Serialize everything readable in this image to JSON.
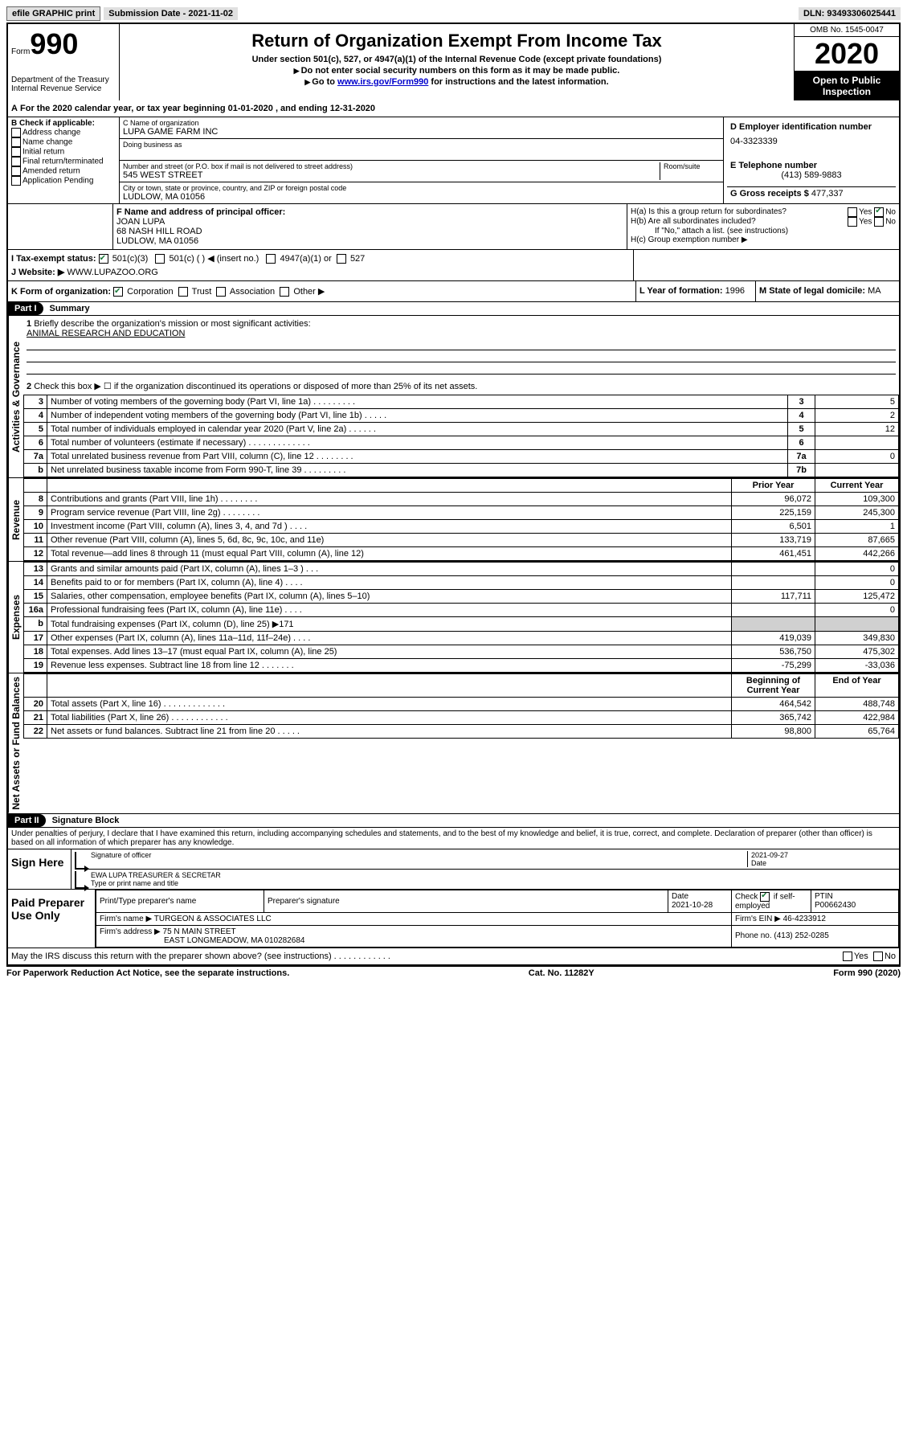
{
  "toolbar": {
    "efile": "efile GRAPHIC print",
    "submission_label": "Submission Date",
    "submission_date": "2021-11-02",
    "dln_label": "DLN:",
    "dln": "93493306025441"
  },
  "header": {
    "form_label": "Form",
    "form_number": "990",
    "dept1": "Department of the Treasury",
    "dept2": "Internal Revenue Service",
    "title": "Return of Organization Exempt From Income Tax",
    "subtitle": "Under section 501(c), 527, or 4947(a)(1) of the Internal Revenue Code (except private foundations)",
    "note1": "Do not enter social security numbers on this form as it may be made public.",
    "note2_a": "Go to ",
    "note2_link": "www.irs.gov/Form990",
    "note2_b": " for instructions and the latest information.",
    "omb": "OMB No. 1545-0047",
    "year": "2020",
    "inspection1": "Open to Public",
    "inspection2": "Inspection"
  },
  "period": "For the 2020 calendar year, or tax year beginning 01-01-2020   , and ending 12-31-2020",
  "section_b": {
    "label": "B Check if applicable:",
    "items": [
      "Address change",
      "Name change",
      "Initial return",
      "Final return/terminated",
      "Amended return",
      "Application Pending"
    ]
  },
  "section_c": {
    "name_label": "C Name of organization",
    "name": "LUPA GAME FARM INC",
    "dba_label": "Doing business as",
    "street_label": "Number and street (or P.O. box if mail is not delivered to street address)",
    "room_label": "Room/suite",
    "street": "545 WEST STREET",
    "city_label": "City or town, state or province, country, and ZIP or foreign postal code",
    "city": "LUDLOW, MA  01056"
  },
  "section_d": {
    "label": "D Employer identification number",
    "value": "04-3323339"
  },
  "section_e": {
    "label": "E Telephone number",
    "value": "(413) 589-9883"
  },
  "section_g": {
    "label": "G Gross receipts $",
    "value": "477,337"
  },
  "section_f": {
    "label": "F  Name and address of principal officer:",
    "name": "JOAN LUPA",
    "addr1": "68 NASH HILL ROAD",
    "addr2": "LUDLOW, MA  01056"
  },
  "section_h": {
    "a_label": "H(a)  Is this a group return for subordinates?",
    "b_label": "H(b)  Are all subordinates included?",
    "b_note": "If \"No,\" attach a list. (see instructions)",
    "c_label": "H(c)  Group exemption number ▶"
  },
  "section_i": {
    "label": "I  Tax-exempt status:",
    "opt1": "501(c)(3)",
    "opt2": "501(c) (  ) ◀ (insert no.)",
    "opt3": "4947(a)(1) or",
    "opt4": "527"
  },
  "section_j": {
    "label": "J   Website: ▶",
    "value": "WWW.LUPAZOO.ORG"
  },
  "section_k": "K Form of organization:",
  "k_opts": [
    "Corporation",
    "Trust",
    "Association",
    "Other ▶"
  ],
  "section_l": {
    "label": "L Year of formation:",
    "value": "1996"
  },
  "section_m": {
    "label": "M State of legal domicile:",
    "value": "MA"
  },
  "part1": {
    "num": "Part I",
    "title": "Summary"
  },
  "summary": {
    "q1": "Briefly describe the organization's mission or most significant activities:",
    "mission": "ANIMAL RESEARCH AND EDUCATION",
    "q2": "Check this box ▶ ☐  if the organization discontinued its operations or disposed of more than 25% of its net assets.",
    "lines": [
      {
        "n": "3",
        "d": "Number of voting members of the governing body (Part VI, line 1a)  .  .  .  .  .  .  .  .  .",
        "b": "3",
        "v": "5"
      },
      {
        "n": "4",
        "d": "Number of independent voting members of the governing body (Part VI, line 1b)  .  .  .  .  .",
        "b": "4",
        "v": "2"
      },
      {
        "n": "5",
        "d": "Total number of individuals employed in calendar year 2020 (Part V, line 2a)  .  .  .  .  .  .",
        "b": "5",
        "v": "12"
      },
      {
        "n": "6",
        "d": "Total number of volunteers (estimate if necessary)  .  .  .  .  .  .  .  .  .  .  .  .  .",
        "b": "6",
        "v": ""
      },
      {
        "n": "7a",
        "d": "Total unrelated business revenue from Part VIII, column (C), line 12  .  .  .  .  .  .  .  .",
        "b": "7a",
        "v": "0"
      },
      {
        "n": "b",
        "d": "Net unrelated business taxable income from Form 990-T, line 39  .  .  .  .  .  .  .  .  .",
        "b": "7b",
        "v": ""
      }
    ],
    "hdr_prior": "Prior Year",
    "hdr_current": "Current Year",
    "revenue": [
      {
        "n": "8",
        "d": "Contributions and grants (Part VIII, line 1h)  .  .  .  .  .  .  .  .",
        "p": "96,072",
        "c": "109,300"
      },
      {
        "n": "9",
        "d": "Program service revenue (Part VIII, line 2g)  .  .  .  .  .  .  .  .",
        "p": "225,159",
        "c": "245,300"
      },
      {
        "n": "10",
        "d": "Investment income (Part VIII, column (A), lines 3, 4, and 7d )  .  .  .  .",
        "p": "6,501",
        "c": "1"
      },
      {
        "n": "11",
        "d": "Other revenue (Part VIII, column (A), lines 5, 6d, 8c, 9c, 10c, and 11e)",
        "p": "133,719",
        "c": "87,665"
      },
      {
        "n": "12",
        "d": "Total revenue—add lines 8 through 11 (must equal Part VIII, column (A), line 12)",
        "p": "461,451",
        "c": "442,266"
      }
    ],
    "expenses": [
      {
        "n": "13",
        "d": "Grants and similar amounts paid (Part IX, column (A), lines 1–3 )  .  .  .",
        "p": "",
        "c": "0"
      },
      {
        "n": "14",
        "d": "Benefits paid to or for members (Part IX, column (A), line 4)  .  .  .  .",
        "p": "",
        "c": "0"
      },
      {
        "n": "15",
        "d": "Salaries, other compensation, employee benefits (Part IX, column (A), lines 5–10)",
        "p": "117,711",
        "c": "125,472"
      },
      {
        "n": "16a",
        "d": "Professional fundraising fees (Part IX, column (A), line 11e)  .  .  .  .",
        "p": "",
        "c": "0"
      },
      {
        "n": "b",
        "d": "Total fundraising expenses (Part IX, column (D), line 25) ▶171",
        "p": "shade",
        "c": "shade"
      },
      {
        "n": "17",
        "d": "Other expenses (Part IX, column (A), lines 11a–11d, 11f–24e)  .  .  .  .",
        "p": "419,039",
        "c": "349,830"
      },
      {
        "n": "18",
        "d": "Total expenses. Add lines 13–17 (must equal Part IX, column (A), line 25)",
        "p": "536,750",
        "c": "475,302"
      },
      {
        "n": "19",
        "d": "Revenue less expenses. Subtract line 18 from line 12  .  .  .  .  .  .  .",
        "p": "-75,299",
        "c": "-33,036"
      }
    ],
    "hdr_begin": "Beginning of Current Year",
    "hdr_end": "End of Year",
    "netassets": [
      {
        "n": "20",
        "d": "Total assets (Part X, line 16)  .  .  .  .  .  .  .  .  .  .  .  .  .",
        "p": "464,542",
        "c": "488,748"
      },
      {
        "n": "21",
        "d": "Total liabilities (Part X, line 26)  .  .  .  .  .  .  .  .  .  .  .  .",
        "p": "365,742",
        "c": "422,984"
      },
      {
        "n": "22",
        "d": "Net assets or fund balances. Subtract line 21 from line 20  .  .  .  .  .",
        "p": "98,800",
        "c": "65,764"
      }
    ]
  },
  "labels": {
    "gov": "Activities & Governance",
    "rev": "Revenue",
    "exp": "Expenses",
    "net": "Net Assets or Fund Balances"
  },
  "part2": {
    "num": "Part II",
    "title": "Signature Block"
  },
  "perjury": "Under penalties of perjury, I declare that I have examined this return, including accompanying schedules and statements, and to the best of my knowledge and belief, it is true, correct, and complete. Declaration of preparer (other than officer) is based on all information of which preparer has any knowledge.",
  "sign": {
    "here": "Sign Here",
    "sig_label": "Signature of officer",
    "date_label": "Date",
    "date": "2021-09-27",
    "name": "EWA LUPA  TREASURER & SECRETAR",
    "name_label": "Type or print name and title"
  },
  "prep": {
    "label": "Paid Preparer Use Only",
    "h1": "Print/Type preparer's name",
    "h2": "Preparer's signature",
    "h3": "Date",
    "date": "2021-10-28",
    "h4a": "Check",
    "h4b": "if self-employed",
    "h5": "PTIN",
    "ptin": "P00662430",
    "firm_name_l": "Firm's name   ▶",
    "firm_name": "TURGEON & ASSOCIATES LLC",
    "firm_ein_l": "Firm's EIN ▶",
    "firm_ein": "46-4233912",
    "firm_addr_l": "Firm's address ▶",
    "firm_addr1": "75 N MAIN STREET",
    "firm_addr2": "EAST LONGMEADOW, MA  010282684",
    "phone_l": "Phone no.",
    "phone": "(413) 252-0285"
  },
  "discuss": "May the IRS discuss this return with the preparer shown above? (see instructions)  .  .  .  .  .  .  .  .  .  .  .  .",
  "footer": {
    "left": "For Paperwork Reduction Act Notice, see the separate instructions.",
    "mid": "Cat. No. 11282Y",
    "right_a": "Form ",
    "right_b": "990",
    "right_c": " (2020)"
  },
  "yes": "Yes",
  "no": "No"
}
